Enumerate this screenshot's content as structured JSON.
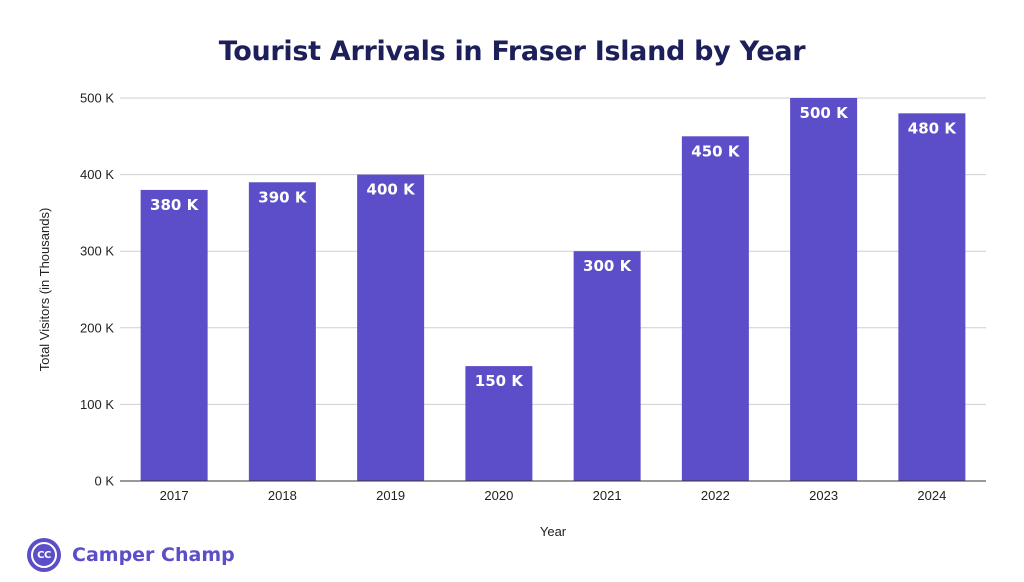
{
  "chart_data": {
    "type": "bar",
    "title": "Tourist Arrivals in Fraser Island by Year",
    "xlabel": "Year",
    "ylabel": "Total Visitors (in Thousands)",
    "categories": [
      "2017",
      "2018",
      "2019",
      "2020",
      "2021",
      "2022",
      "2023",
      "2024"
    ],
    "values": [
      380,
      390,
      400,
      150,
      300,
      450,
      500,
      480
    ],
    "data_labels": [
      "380 K",
      "390 K",
      "400 K",
      "150 K",
      "300 K",
      "450 K",
      "500 K",
      "480 K"
    ],
    "ylim": [
      0,
      500
    ],
    "yticks": [
      0,
      100,
      200,
      300,
      400,
      500
    ],
    "ytick_labels": [
      "0 K",
      "100 K",
      "200 K",
      "300 K",
      "400 K",
      "500 K"
    ],
    "grid": true,
    "legend": "none",
    "bar_color": "#5b4ec8"
  },
  "brand": {
    "logo_text": "CC",
    "name": "Camper Champ",
    "color": "#5b4ec8"
  }
}
